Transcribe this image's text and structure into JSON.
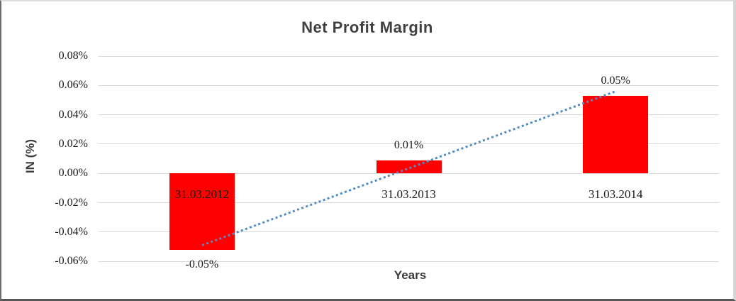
{
  "chart_data": {
    "type": "bar",
    "title": "Net Profit Margin",
    "xlabel": "Years",
    "ylabel": "IN (%)",
    "categories": [
      "31.03.2012",
      "31.03.2013",
      "31.03.2014"
    ],
    "values": [
      -0.052,
      0.009,
      0.053
    ],
    "data_labels": [
      "-0.05%",
      "0.01%",
      "0.05%"
    ],
    "ytick_labels": [
      "0.08%",
      "0.06%",
      "0.04%",
      "0.02%",
      "0.00%",
      "-0.02%",
      "-0.04%",
      "-0.06%"
    ],
    "ylim": [
      -0.06,
      0.08
    ],
    "ytick_step": 0.02,
    "grid": true,
    "legend": "none",
    "bar_color": "#ff0000",
    "trendline": {
      "type": "linear",
      "style": "dotted",
      "color": "#528ac5",
      "start_value": -0.049,
      "end_value": 0.056
    },
    "title_color": "#404040",
    "axis_title_color": "#3d3d3d",
    "tick_label_color": "#1a1a1a",
    "data_label_color": "#1a1a1a",
    "gridline_color": "#d9d9d9"
  }
}
